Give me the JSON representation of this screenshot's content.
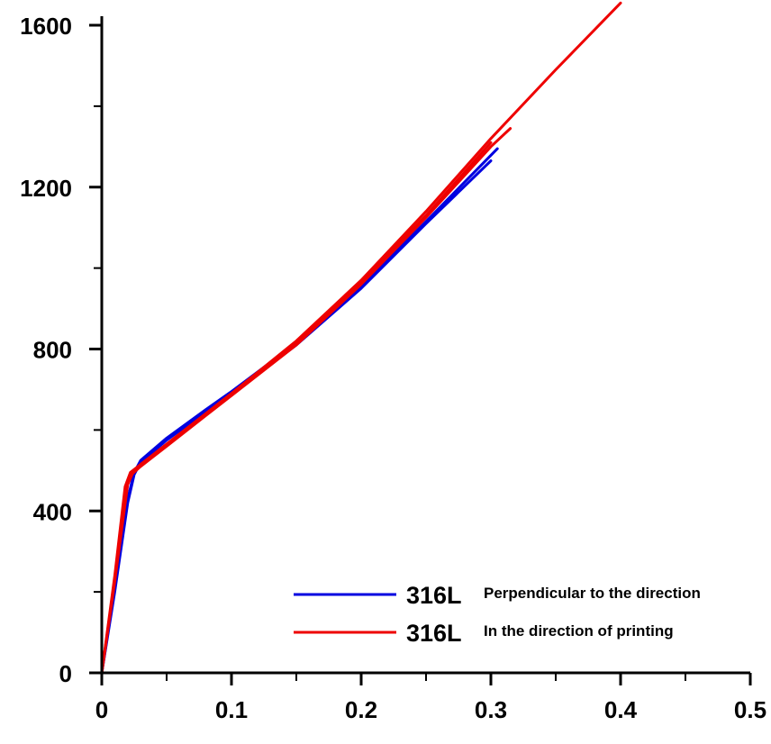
{
  "chart_data": {
    "type": "line",
    "title": "",
    "xlabel": "",
    "ylabel": "",
    "xlim": [
      0,
      0.5
    ],
    "ylim": [
      0,
      1600
    ],
    "x_ticks": [
      0,
      0.1,
      0.2,
      0.3,
      0.4,
      0.5
    ],
    "x_tick_labels": [
      "0",
      "0.1",
      "0.2",
      "0.3",
      "0.4",
      "0.5"
    ],
    "y_ticks": [
      0,
      400,
      800,
      1200,
      1600
    ],
    "y_tick_labels": [
      "0",
      "400",
      "800",
      "1200",
      "1600"
    ],
    "grid": false,
    "legend_position": "bottom-right",
    "series": [
      {
        "name": "316L",
        "name_suffix": "Perpendicular to the direction",
        "color": "#0000e0",
        "curves": [
          [
            [
              0,
              0
            ],
            [
              0.01,
              200
            ],
            [
              0.02,
              420
            ],
            [
              0.025,
              490
            ],
            [
              0.03,
              520
            ],
            [
              0.05,
              575
            ],
            [
              0.08,
              645
            ],
            [
              0.1,
              690
            ],
            [
              0.15,
              810
            ],
            [
              0.2,
              950
            ],
            [
              0.25,
              1110
            ],
            [
              0.3,
              1265
            ]
          ],
          [
            [
              0,
              0
            ],
            [
              0.01,
              210
            ],
            [
              0.02,
              430
            ],
            [
              0.025,
              495
            ],
            [
              0.03,
              525
            ],
            [
              0.05,
              580
            ],
            [
              0.08,
              650
            ],
            [
              0.1,
              695
            ],
            [
              0.15,
              815
            ],
            [
              0.2,
              955
            ],
            [
              0.25,
              1115
            ],
            [
              0.305,
              1295
            ]
          ]
        ]
      },
      {
        "name": "316L",
        "name_suffix": "In the direction of printing",
        "color": "#ee0000",
        "curves": [
          [
            [
              0,
              0
            ],
            [
              0.01,
              240
            ],
            [
              0.018,
              460
            ],
            [
              0.022,
              495
            ],
            [
              0.03,
              515
            ],
            [
              0.05,
              565
            ],
            [
              0.08,
              640
            ],
            [
              0.1,
              690
            ],
            [
              0.15,
              820
            ],
            [
              0.2,
              970
            ],
            [
              0.25,
              1140
            ],
            [
              0.3,
              1320
            ],
            [
              0.35,
              1490
            ],
            [
              0.4,
              1655
            ]
          ],
          [
            [
              0,
              0
            ],
            [
              0.01,
              230
            ],
            [
              0.019,
              460
            ],
            [
              0.023,
              490
            ],
            [
              0.03,
              510
            ],
            [
              0.05,
              560
            ],
            [
              0.08,
              635
            ],
            [
              0.1,
              685
            ],
            [
              0.15,
              810
            ],
            [
              0.2,
              960
            ],
            [
              0.25,
              1125
            ],
            [
              0.3,
              1300
            ],
            [
              0.315,
              1345
            ]
          ],
          [
            [
              0,
              0
            ],
            [
              0.01,
              225
            ],
            [
              0.02,
              465
            ],
            [
              0.024,
              495
            ],
            [
              0.03,
              515
            ],
            [
              0.05,
              565
            ],
            [
              0.08,
              640
            ],
            [
              0.1,
              690
            ],
            [
              0.15,
              818
            ],
            [
              0.2,
              965
            ],
            [
              0.25,
              1130
            ],
            [
              0.3,
              1310
            ]
          ]
        ]
      }
    ]
  }
}
